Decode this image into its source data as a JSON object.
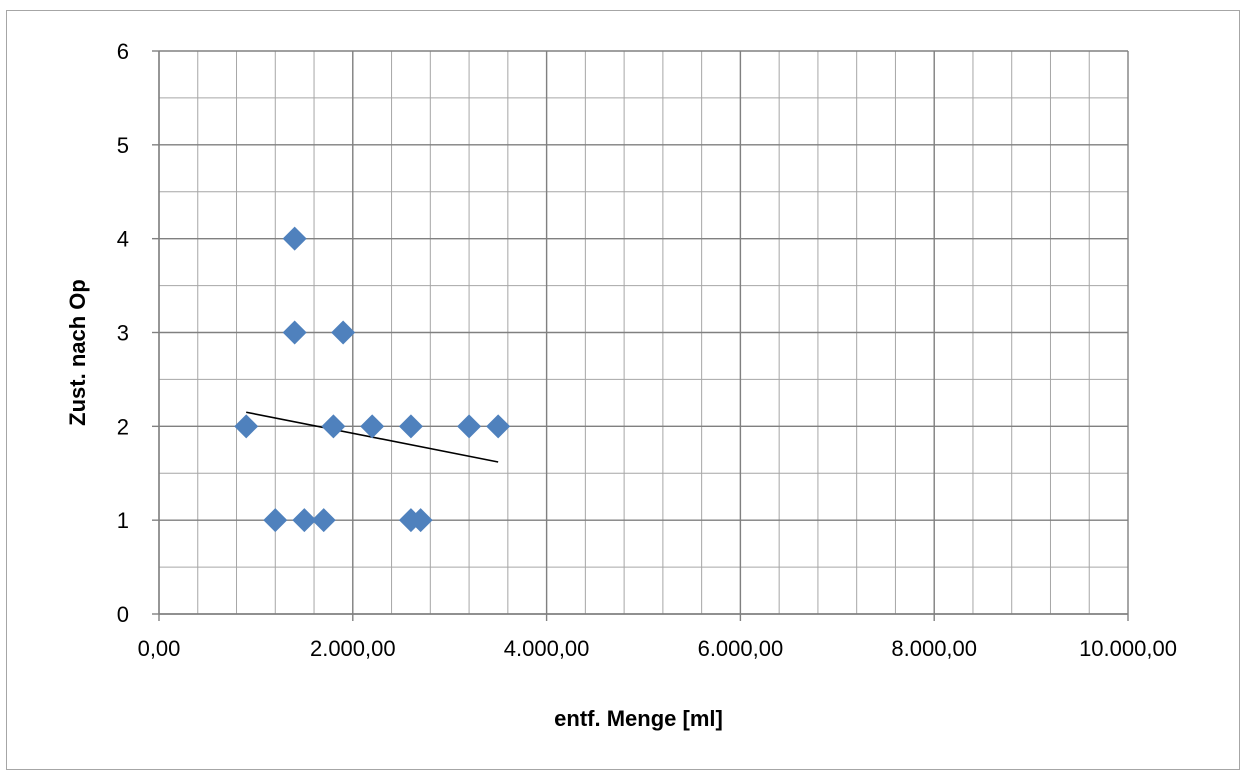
{
  "chart_data": {
    "type": "scatter",
    "title": "",
    "xlabel": "entf. Menge [ml]",
    "ylabel": "Zust. nach  Op",
    "xlim": [
      0,
      10000
    ],
    "ylim": [
      0,
      6
    ],
    "x_ticks": [
      0,
      2000,
      4000,
      6000,
      8000,
      10000
    ],
    "x_tick_labels": [
      "0,00",
      "2.000,00",
      "4.000,00",
      "6.000,00",
      "8.000,00",
      "10.000,00"
    ],
    "y_ticks": [
      0,
      1,
      2,
      3,
      4,
      5,
      6
    ],
    "y_tick_labels": [
      "0",
      "1",
      "2",
      "3",
      "4",
      "5",
      "6"
    ],
    "grid": true,
    "minor_grid": true,
    "legend": "none",
    "series": [
      {
        "marker": "diamond",
        "color": "#4f81bd",
        "points": [
          {
            "x": 900,
            "y": 2
          },
          {
            "x": 1200,
            "y": 1
          },
          {
            "x": 1400,
            "y": 4
          },
          {
            "x": 1400,
            "y": 3
          },
          {
            "x": 1500,
            "y": 1
          },
          {
            "x": 1700,
            "y": 1
          },
          {
            "x": 1800,
            "y": 2
          },
          {
            "x": 1900,
            "y": 3
          },
          {
            "x": 2200,
            "y": 2
          },
          {
            "x": 2600,
            "y": 2
          },
          {
            "x": 2600,
            "y": 1
          },
          {
            "x": 2700,
            "y": 1
          },
          {
            "x": 3200,
            "y": 2
          },
          {
            "x": 3500,
            "y": 2
          }
        ]
      }
    ],
    "trendline": {
      "type": "linear",
      "color": "#000000",
      "x_range": [
        900,
        3500
      ],
      "y_values": [
        2.15,
        1.62
      ]
    }
  }
}
